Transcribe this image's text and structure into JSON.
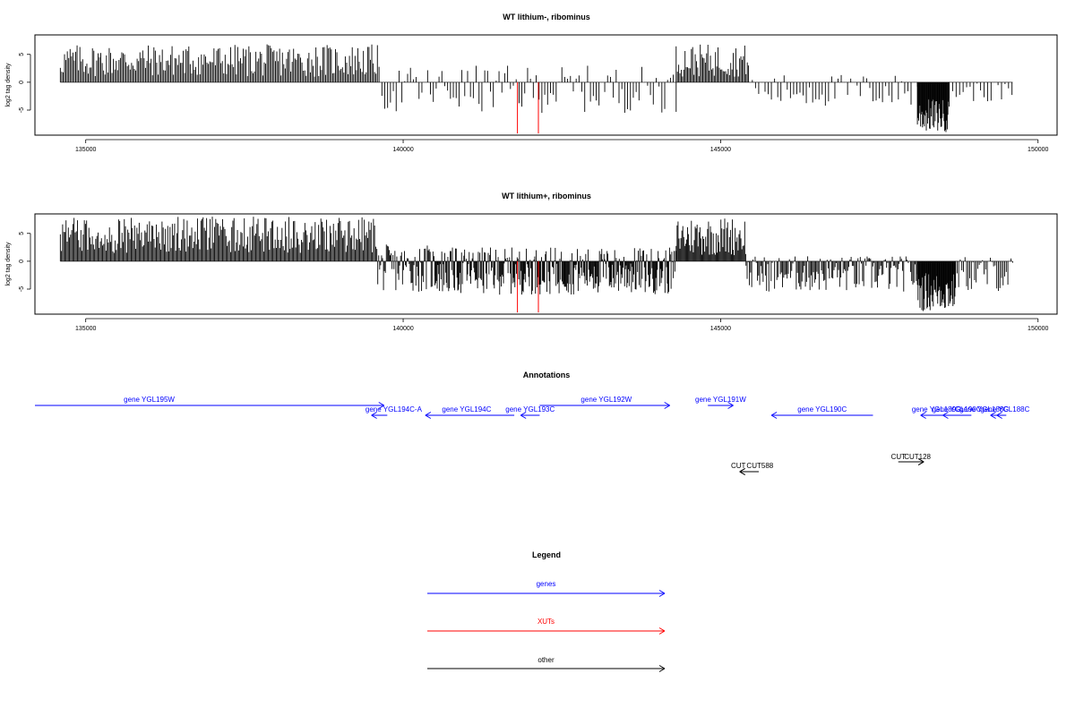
{
  "chart_data": [
    {
      "type": "bar",
      "title": "WT lithium-, ribominus",
      "ylabel": "log2 tag density",
      "xlim": [
        134200,
        150300
      ],
      "ylim": [
        -9.5,
        8.5
      ],
      "xticks": [
        135000,
        140000,
        145000,
        150000
      ],
      "xtick_labels": [
        "135000",
        "140000",
        "145000",
        "150000"
      ],
      "yticks": [
        5,
        0,
        -5
      ],
      "ytick_labels": [
        "5",
        "0",
        "-5"
      ],
      "baseline": {
        "x_start": 134600,
        "x_end": 149600
      },
      "segments": [
        {
          "x_start": 134600,
          "x_end": 139600,
          "step": 22,
          "min": 1.0,
          "max": 6.8
        },
        {
          "x_start": 139620,
          "x_end": 144300,
          "step": 45,
          "min": -5.5,
          "max": 3.0
        },
        {
          "x_start": 144300,
          "x_end": 145450,
          "step": 20,
          "min": 1.0,
          "max": 6.8
        },
        {
          "x_start": 145500,
          "x_end": 148100,
          "step": 50,
          "min": -4.5,
          "max": 1.5
        },
        {
          "x_start": 148100,
          "x_end": 148600,
          "step": 10,
          "min": -9.0,
          "max": -3.0
        },
        {
          "x_start": 148600,
          "x_end": 149600,
          "step": 55,
          "min": -3.5,
          "max": 0.0
        }
      ],
      "highlight_bars": [
        {
          "x": 141800,
          "value": -9.2,
          "color": "#ff0000"
        },
        {
          "x": 142130,
          "value": -9.2,
          "color": "#ff0000"
        }
      ]
    },
    {
      "type": "bar",
      "title": "WT lithium+, ribominus",
      "ylabel": "log2 tag density",
      "xlim": [
        134200,
        150300
      ],
      "ylim": [
        -9.5,
        8.5
      ],
      "xticks": [
        135000,
        140000,
        145000,
        150000
      ],
      "xtick_labels": [
        "135000",
        "140000",
        "145000",
        "150000"
      ],
      "yticks": [
        5,
        0,
        -5
      ],
      "ytick_labels": [
        "5",
        "0",
        "-5"
      ],
      "baseline": {
        "x_start": 134600,
        "x_end": 149600
      },
      "segments": [
        {
          "x_start": 134600,
          "x_end": 139600,
          "step": 18,
          "min": 1.5,
          "max": 8.0
        },
        {
          "x_start": 139600,
          "x_end": 140500,
          "step": 15,
          "min": -5.5,
          "max": 3.0
        },
        {
          "x_start": 140500,
          "x_end": 144300,
          "step": 12,
          "min": -6.0,
          "max": 2.5
        },
        {
          "x_start": 144300,
          "x_end": 145400,
          "step": 15,
          "min": 1.0,
          "max": 8.0
        },
        {
          "x_start": 145400,
          "x_end": 148100,
          "step": 18,
          "min": -5.5,
          "max": 1.0
        },
        {
          "x_start": 148100,
          "x_end": 148700,
          "step": 10,
          "min": -9.0,
          "max": -2.0
        },
        {
          "x_start": 148700,
          "x_end": 149600,
          "step": 25,
          "min": -5.5,
          "max": 1.0
        }
      ],
      "highlight_bars": [
        {
          "x": 141800,
          "value": -9.2,
          "color": "#ff0000"
        },
        {
          "x": 142130,
          "value": -9.2,
          "color": "#ff0000"
        }
      ]
    }
  ],
  "annotations": {
    "title": "Annotations",
    "xlim": [
      134200,
      150300
    ],
    "features": [
      {
        "label": "gene YGL195W",
        "x_start": 134200,
        "x_end": 139700,
        "direction": "right",
        "color": "#0000ff",
        "row": 0,
        "label_x": 136000
      },
      {
        "label": "gene YGL194C-A",
        "x_start": 139500,
        "x_end": 139750,
        "direction": "left",
        "color": "#0000ff",
        "row": 1,
        "label_x": 139850
      },
      {
        "label": "gene YGL194C",
        "x_start": 140350,
        "x_end": 141750,
        "direction": "left",
        "color": "#0000ff",
        "row": 1,
        "label_x": 141000
      },
      {
        "label": "gene YGL193C",
        "x_start": 141850,
        "x_end": 142150,
        "direction": "left",
        "color": "#0000ff",
        "row": 1,
        "label_x": 142000
      },
      {
        "label": "gene YGL192W",
        "x_start": 142150,
        "x_end": 144200,
        "direction": "right",
        "color": "#0000ff",
        "row": 0,
        "label_x": 143200
      },
      {
        "label": "gene YGL191W",
        "x_start": 144800,
        "x_end": 145200,
        "direction": "right",
        "color": "#0000ff",
        "row": 0,
        "label_x": 145000
      },
      {
        "label": "gene YGL190C",
        "x_start": 145800,
        "x_end": 147400,
        "direction": "left",
        "color": "#0000ff",
        "row": 1,
        "label_x": 146600
      },
      {
        "label": "gene YGL189C",
        "x_start": 148150,
        "x_end": 148600,
        "direction": "left",
        "color": "#0000ff",
        "row": 1,
        "label_x": 148400
      },
      {
        "label": "gene YGL190C",
        "x_start": 148500,
        "x_end": 148950,
        "direction": "left",
        "color": "#0000ff",
        "row": 1,
        "label_x": 148720
      },
      {
        "label": "gene YGL188C",
        "x_start": 149250,
        "x_end": 149400,
        "direction": "left",
        "color": "#0000ff",
        "row": 1,
        "label_x": 149150
      },
      {
        "label": "gene YGL188C",
        "x_start": 149350,
        "x_end": 149500,
        "direction": "left",
        "color": "#0000ff",
        "row": 1,
        "label_x": 149480
      },
      {
        "label": "CUT",
        "x_start": 145300,
        "x_end": 145600,
        "direction": "left",
        "color": "#000000",
        "row": 3,
        "label_x": 145280
      },
      {
        "label": "CUT588",
        "x_start": 145300,
        "x_end": 145600,
        "direction": "left",
        "color": "#000000",
        "row": 3,
        "label_x": 145620
      },
      {
        "label": "CUT",
        "x_start": 147800,
        "x_end": 148200,
        "direction": "right",
        "color": "#000000",
        "row": 2,
        "label_x": 147800
      },
      {
        "label": "CUT128",
        "x_start": 147800,
        "x_end": 148200,
        "direction": "right",
        "color": "#000000",
        "row": 2,
        "label_x": 148100
      }
    ]
  },
  "legend": {
    "title": "Legend",
    "items": [
      {
        "label": "genes",
        "color": "#0000ff"
      },
      {
        "label": "XUTs",
        "color": "#ff0000"
      },
      {
        "label": "other",
        "color": "#000000"
      }
    ]
  }
}
